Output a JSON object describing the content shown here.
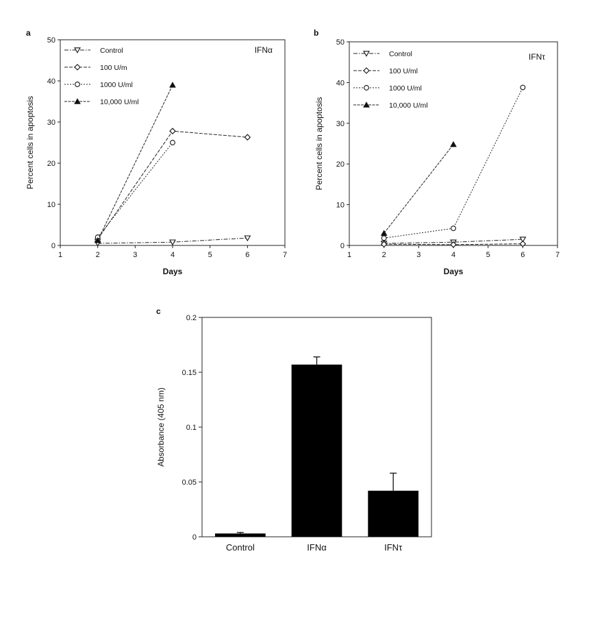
{
  "chart_data": [
    {
      "panel": "a",
      "type": "line",
      "tag": "IFNα",
      "xlabel": "Days",
      "ylabel": "Percent cells in apoptosis",
      "xlim": [
        1,
        7
      ],
      "ylim": [
        0,
        50
      ],
      "xticks": [
        1,
        2,
        3,
        4,
        5,
        6,
        7
      ],
      "yticks": [
        0,
        10,
        20,
        30,
        40,
        50
      ],
      "legend_position": "top-left",
      "grid": false,
      "series": [
        {
          "name": "Control",
          "marker": "tri-down",
          "dash": "6,2,1.5,2",
          "points": [
            [
              2,
              0.5
            ],
            [
              4,
              0.8
            ],
            [
              6,
              1.8
            ]
          ]
        },
        {
          "name": "100  U/m",
          "marker": "diamond",
          "dash": "5,2",
          "points": [
            [
              2,
              1.5
            ],
            [
              4,
              27.8
            ],
            [
              6,
              26.3
            ]
          ]
        },
        {
          "name": "1000  U/ml",
          "marker": "circle",
          "dash": "2,2",
          "points": [
            [
              2,
              2.0
            ],
            [
              4,
              25.0
            ]
          ]
        },
        {
          "name": "10,000  U/ml",
          "marker": "tri-up",
          "dash": "4,1.5",
          "points": [
            [
              2,
              1.2
            ],
            [
              4,
              39.0
            ]
          ]
        }
      ]
    },
    {
      "panel": "b",
      "type": "line",
      "tag": "IFNτ",
      "xlabel": "Days",
      "ylabel": "Percent cells in apoptosis",
      "xlim": [
        1,
        7
      ],
      "ylim": [
        0,
        50
      ],
      "xticks": [
        1,
        2,
        3,
        4,
        5,
        6,
        7
      ],
      "yticks": [
        0,
        10,
        20,
        30,
        40,
        50
      ],
      "legend_position": "top-left",
      "grid": false,
      "series": [
        {
          "name": "Control",
          "marker": "tri-down",
          "dash": "6,2,1.5,2",
          "points": [
            [
              2,
              0.5
            ],
            [
              4,
              0.8
            ],
            [
              6,
              1.5
            ]
          ]
        },
        {
          "name": "100  U/ml",
          "marker": "diamond",
          "dash": "5,2",
          "points": [
            [
              2,
              0.3
            ],
            [
              4,
              0.2
            ],
            [
              6,
              0.4
            ]
          ]
        },
        {
          "name": "1000  U/ml",
          "marker": "circle",
          "dash": "2,2",
          "points": [
            [
              2,
              1.8
            ],
            [
              4,
              4.2
            ],
            [
              6,
              38.8
            ]
          ]
        },
        {
          "name": "10,000  U/ml",
          "marker": "tri-up",
          "dash": "4,1.5",
          "points": [
            [
              2,
              3.0
            ],
            [
              4,
              24.8
            ]
          ]
        }
      ]
    },
    {
      "panel": "c",
      "type": "bar",
      "ylabel": "Absorbance (405 nm)",
      "ylim": [
        0,
        0.2
      ],
      "yticks": [
        0,
        0.05,
        0.1,
        0.15,
        0.2
      ],
      "ytick_labels": [
        "0",
        "0.05",
        "0.1",
        "0.15",
        "0.2"
      ],
      "categories": [
        "Control",
        "IFNα",
        "IFNτ"
      ],
      "values": [
        0.003,
        0.157,
        0.042
      ],
      "errors": [
        0.001,
        0.007,
        0.016
      ],
      "bar_color": "#000000"
    }
  ]
}
